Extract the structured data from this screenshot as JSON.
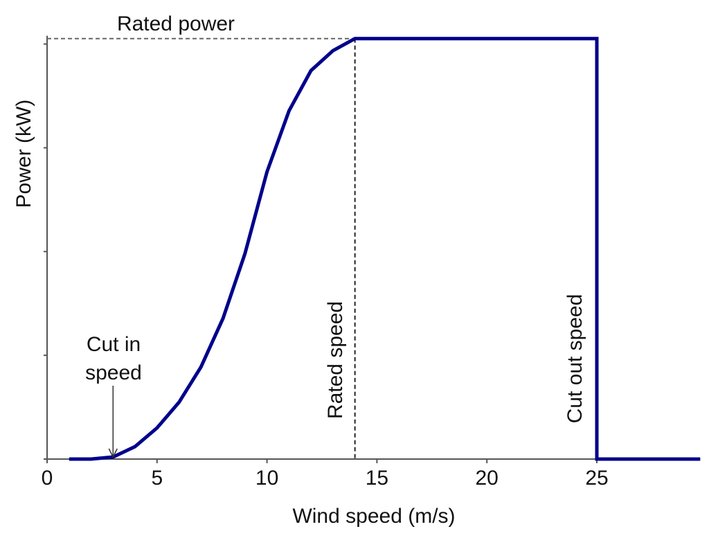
{
  "chart_data": {
    "type": "line",
    "title": "",
    "xlabel": "Wind speed (m/s)",
    "ylabel": "Power (kW)",
    "xlim": [
      0,
      29.7
    ],
    "ylim": [
      0,
      1.0
    ],
    "x_ticks": [
      0,
      5,
      10,
      15,
      20,
      25
    ],
    "x_tick_labels": [
      "0",
      "5",
      "10",
      "15",
      "20",
      "25"
    ],
    "y_ticks": [
      0,
      0.25,
      0.5,
      0.75,
      1.0
    ],
    "y_tick_labels_shown": false,
    "grid": false,
    "series": [
      {
        "color": "#00008b",
        "x": [
          1,
          2,
          3,
          4,
          5,
          6,
          7,
          8,
          9,
          10,
          11,
          12,
          13,
          14,
          25,
          25,
          29.7
        ],
        "y": [
          0,
          0,
          0.005,
          0.03,
          0.075,
          0.137,
          0.222,
          0.339,
          0.495,
          0.692,
          0.839,
          0.936,
          0.984,
          1.013,
          1.013,
          0,
          0
        ]
      }
    ],
    "annotations": {
      "rated_power": {
        "text": "Rated power",
        "y": 1.013
      },
      "rated_speed": {
        "text": "Rated speed",
        "x": 14
      },
      "cut_out_speed": {
        "text": "Cut out speed",
        "x": 25
      },
      "cut_in_speed": {
        "line1": "Cut in",
        "line2": "speed",
        "x": 3
      }
    }
  }
}
